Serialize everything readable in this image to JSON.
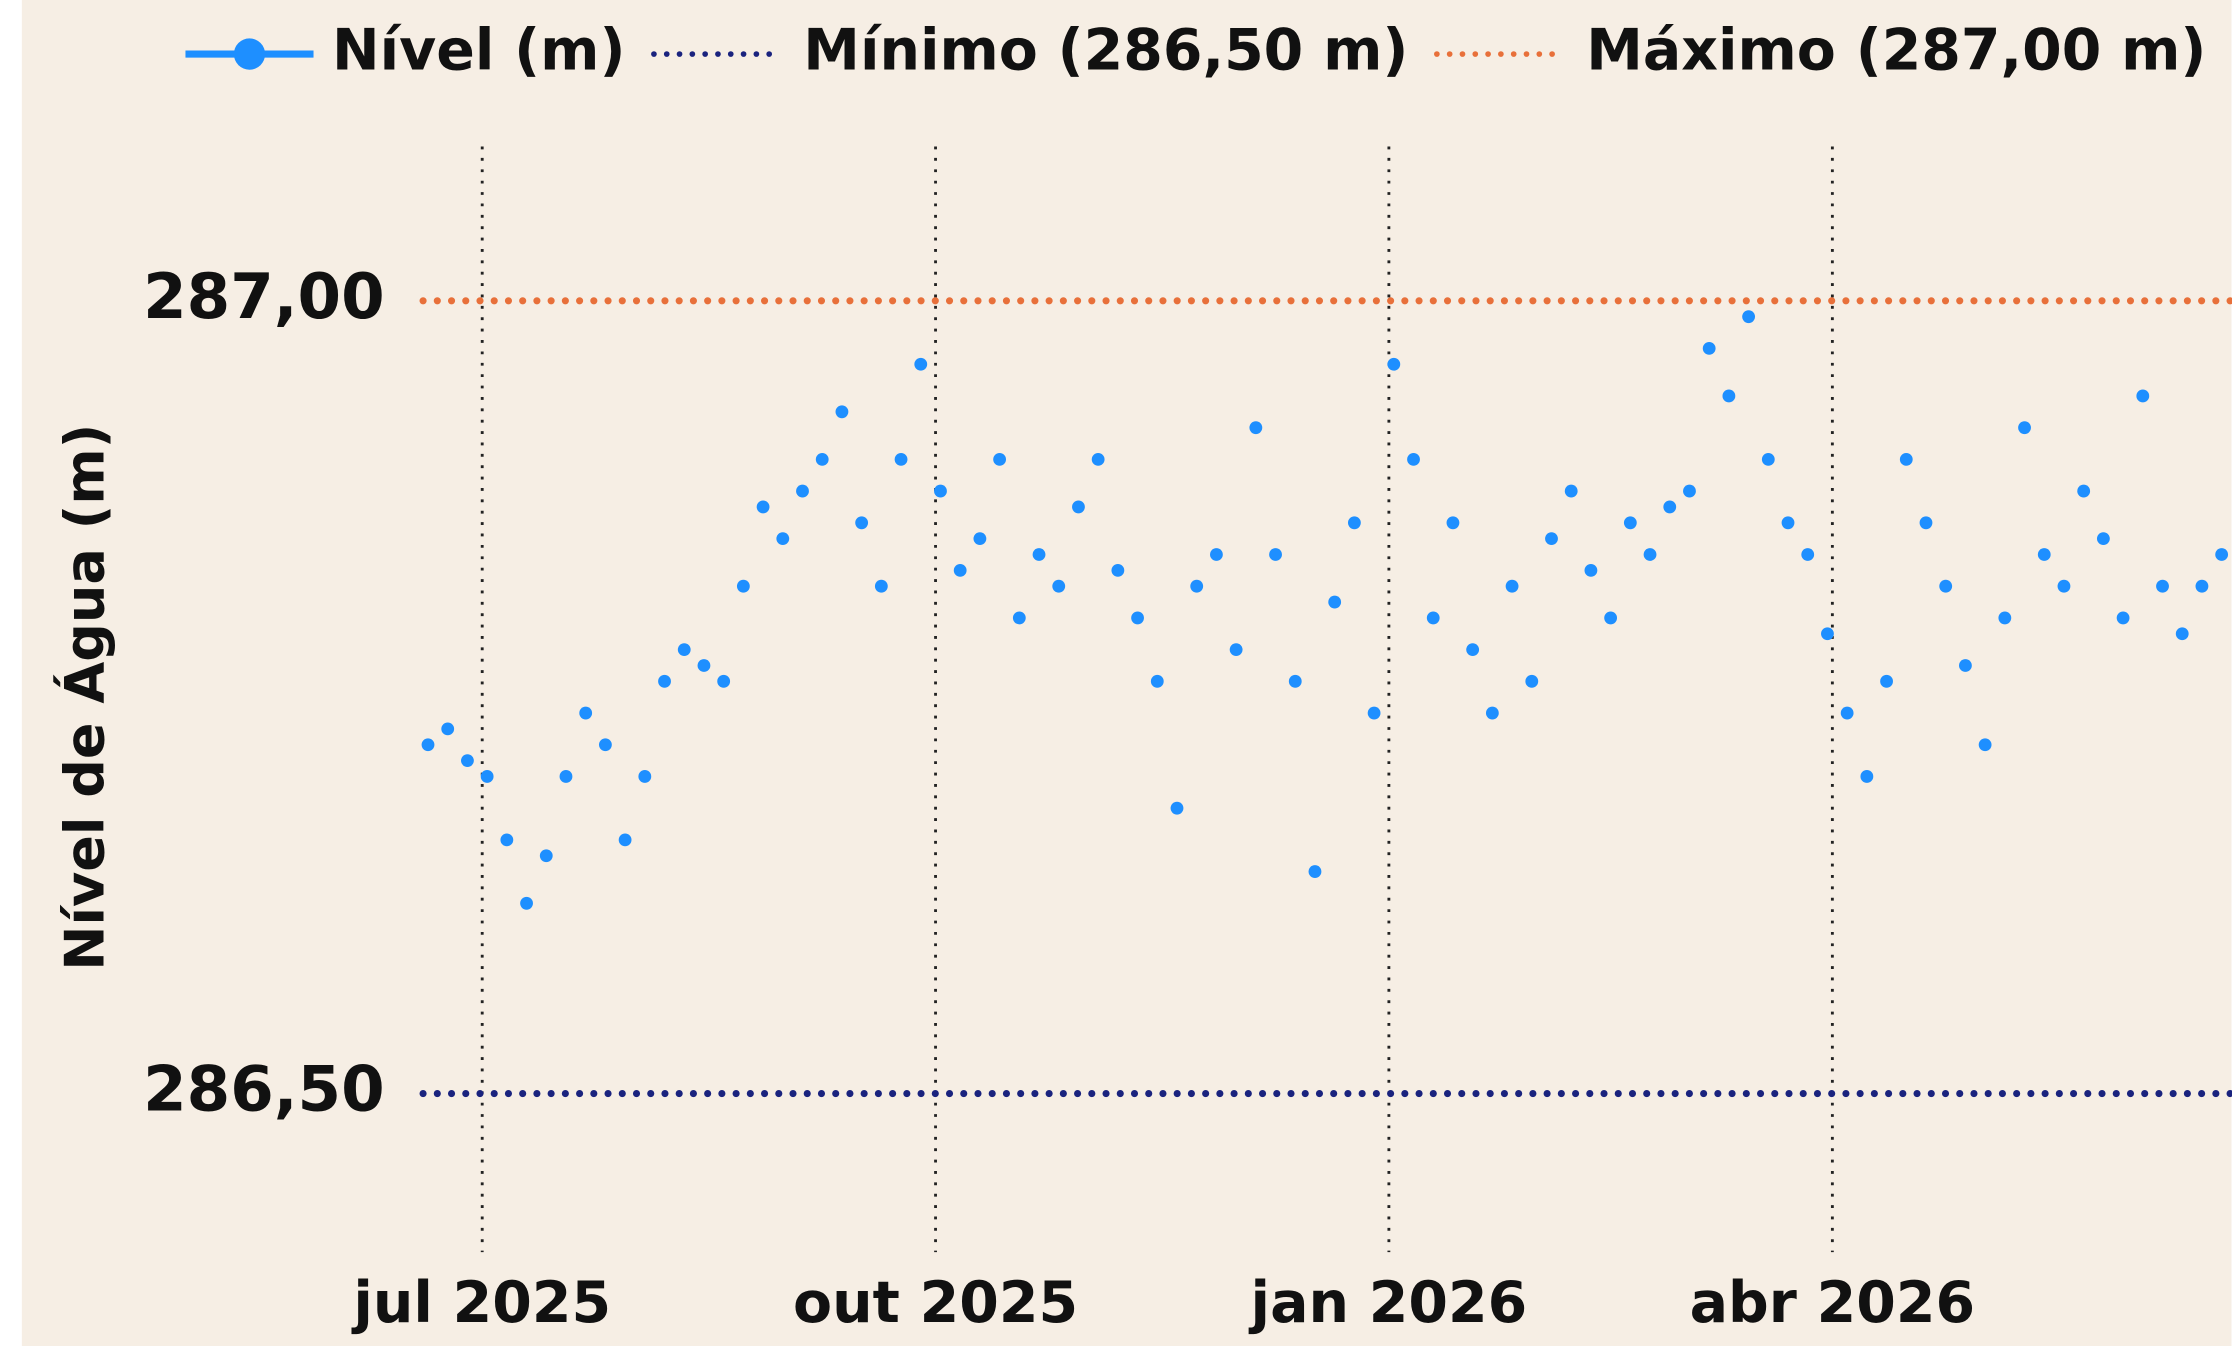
{
  "chart_data": {
    "type": "scatter",
    "y_label": "Nível de Água (m)",
    "x": [
      "2025-06-20",
      "2025-06-24",
      "2025-06-28",
      "2025-07-02",
      "2025-07-06",
      "2025-07-10",
      "2025-07-14",
      "2025-07-18",
      "2025-07-22",
      "2025-07-26",
      "2025-07-30",
      "2025-08-03",
      "2025-08-07",
      "2025-08-11",
      "2025-08-15",
      "2025-08-19",
      "2025-08-23",
      "2025-08-27",
      "2025-08-31",
      "2025-09-04",
      "2025-09-08",
      "2025-09-12",
      "2025-09-16",
      "2025-09-20",
      "2025-09-24",
      "2025-09-28",
      "2025-10-02",
      "2025-10-06",
      "2025-10-10",
      "2025-10-14",
      "2025-10-18",
      "2025-10-22",
      "2025-10-26",
      "2025-10-30",
      "2025-11-03",
      "2025-11-07",
      "2025-11-11",
      "2025-11-15",
      "2025-11-19",
      "2025-11-23",
      "2025-11-27",
      "2025-12-01",
      "2025-12-05",
      "2025-12-09",
      "2025-12-13",
      "2025-12-17",
      "2025-12-21",
      "2025-12-25",
      "2025-12-29",
      "2026-01-02",
      "2026-01-06",
      "2026-01-10",
      "2026-01-14",
      "2026-01-18",
      "2026-01-22",
      "2026-01-26",
      "2026-01-30",
      "2026-02-03",
      "2026-02-07",
      "2026-02-11",
      "2026-02-15",
      "2026-02-19",
      "2026-02-23",
      "2026-02-27",
      "2026-03-03",
      "2026-03-07",
      "2026-03-11",
      "2026-03-15",
      "2026-03-19",
      "2026-03-23",
      "2026-03-27",
      "2026-03-31",
      "2026-04-04",
      "2026-04-08",
      "2026-04-12",
      "2026-04-16",
      "2026-04-20",
      "2026-04-24",
      "2026-04-28",
      "2026-05-02",
      "2026-05-06",
      "2026-05-10",
      "2026-05-14",
      "2026-05-18",
      "2026-05-22",
      "2026-05-26",
      "2026-05-30",
      "2026-06-03",
      "2026-06-07",
      "2026-06-11",
      "2026-06-15",
      "2026-06-19"
    ],
    "series": [
      {
        "name": "Nível (m)",
        "color": "#1e8fff",
        "values": [
          286.72,
          286.73,
          286.71,
          286.7,
          286.66,
          286.62,
          286.65,
          286.7,
          286.74,
          286.72,
          286.66,
          286.7,
          286.76,
          286.78,
          286.77,
          286.76,
          286.82,
          286.87,
          286.85,
          286.88,
          286.9,
          286.93,
          286.86,
          286.82,
          286.9,
          286.96,
          286.88,
          286.83,
          286.85,
          286.9,
          286.8,
          286.84,
          286.82,
          286.87,
          286.9,
          286.83,
          286.8,
          286.76,
          286.68,
          286.82,
          286.84,
          286.78,
          286.92,
          286.84,
          286.76,
          286.64,
          286.81,
          286.86,
          286.74,
          286.96,
          286.9,
          286.8,
          286.86,
          286.78,
          286.74,
          286.82,
          286.76,
          286.85,
          286.88,
          286.83,
          286.8,
          286.86,
          286.84,
          286.87,
          286.88,
          286.97,
          286.94,
          286.99,
          286.9,
          286.86,
          286.84,
          286.79,
          286.74,
          286.7,
          286.76,
          286.9,
          286.86,
          286.82,
          286.77,
          286.72,
          286.8,
          286.92,
          286.84,
          286.82,
          286.88,
          286.85,
          286.8,
          286.94,
          286.82,
          286.79,
          286.82,
          286.84
        ]
      }
    ],
    "reference_lines": [
      {
        "name": "Mínimo (286,50 m)",
        "value": 286.5,
        "color": "#1a237e"
      },
      {
        "name": "Máximo (287,00 m)",
        "value": 287,
        "color": "#e8703a"
      }
    ],
    "xlim": [
      "2025-06-19",
      "2026-06-21"
    ],
    "xticks": [
      {
        "value": "2025-07-01",
        "label": "jul 2025"
      },
      {
        "value": "2025-10-01",
        "label": "out 2025"
      },
      {
        "value": "2026-01-01",
        "label": "jan 2026"
      },
      {
        "value": "2026-04-01",
        "label": "abr 2026"
      }
    ],
    "ylim": [
      286.4,
      287.1
    ],
    "yticks": [
      {
        "value": 286.5,
        "label": "286,50"
      },
      {
        "value": 287,
        "label": "287,00"
      }
    ],
    "grid": "x"
  }
}
